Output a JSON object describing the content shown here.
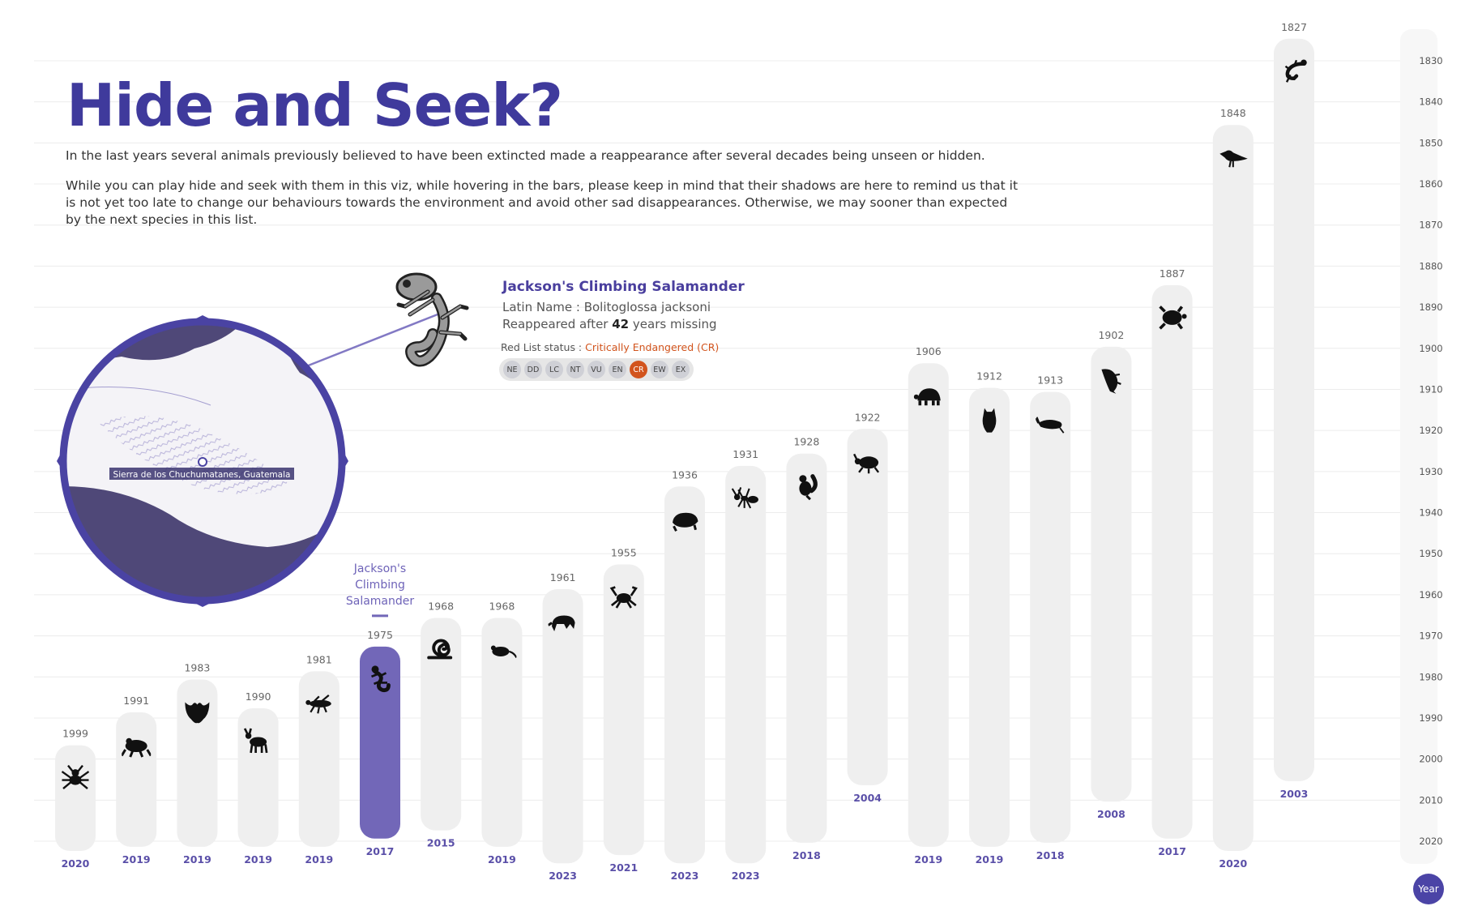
{
  "title": "Hide and Seek?",
  "intro_1": "In the last years several animals previously believed to have been extincted made a reappearance after several decades being unseen or hidden.",
  "intro_2": "While you can  play hide and seek with them in this viz, while hovering in the bars, please keep in mind that their shadows are here to remind us that it is not yet too late to change our behaviours towards the environment and avoid other sad disappearances. Otherwise, we may sooner than expected by the next species in this list.",
  "tooltip": {
    "name": "Jackson's Climbing Salamander",
    "latin_prefix": "Latin Name : ",
    "latin": "Bolitoglossa jacksoni",
    "reappeared_prefix": "Reappeared after ",
    "years_missing": "42",
    "reappeared_suffix": " years missing",
    "red_list_prefix": "Red List status : ",
    "red_list_status": "Critically Endangered (CR)",
    "red_list_categories": [
      "NE",
      "DD",
      "LC",
      "NT",
      "VU",
      "EN",
      "CR",
      "EW",
      "EX"
    ],
    "active_category": "CR",
    "map_label": "Sierra de los Chuchumatanes, Guatemala"
  },
  "year_button": "Year",
  "colors": {
    "title": "#3f3a9c",
    "bar": "#efefef",
    "highlight_bar": "#7267b8",
    "year_label": "#5a4fa8",
    "status_cr": "#d2541d",
    "map_ring": "#4a43a3"
  },
  "chart_data": {
    "type": "bar",
    "description_of_encoding": "Floating range bars: each bar spans from the year an animal was last seen (top label) to the year it reappeared (bottom label). The vertical year axis runs upward from 2020 to 1830.",
    "highlighted": "Jackson's Climbing Salamander",
    "highlight_label": [
      "Jackson's",
      "Climbing",
      "Salamander"
    ],
    "y_axis": {
      "ticks": [
        1830,
        1840,
        1850,
        1860,
        1870,
        1880,
        1890,
        1900,
        1910,
        1920,
        1930,
        1940,
        1950,
        1960,
        1970,
        1980,
        1990,
        2000,
        2010,
        2020
      ],
      "range": [
        1826,
        2026
      ],
      "reversed": true
    },
    "series": [
      {
        "last_seen": 1999,
        "rediscovered": 2020,
        "icon": "spider-icon"
      },
      {
        "last_seen": 1991,
        "rediscovered": 2019,
        "icon": "frog-icon"
      },
      {
        "last_seen": 1983,
        "rediscovered": 2019,
        "icon": "bat-icon"
      },
      {
        "last_seen": 1990,
        "rediscovered": 2019,
        "icon": "deer-icon"
      },
      {
        "last_seen": 1981,
        "rediscovered": 2019,
        "icon": "insect-icon"
      },
      {
        "last_seen": 1975,
        "rediscovered": 2017,
        "icon": "salamander-icon",
        "name": "Jackson's Climbing Salamander"
      },
      {
        "last_seen": 1968,
        "rediscovered": 2015,
        "icon": "snail-icon"
      },
      {
        "last_seen": 1968,
        "rediscovered": 2019,
        "icon": "mouse-icon"
      },
      {
        "last_seen": 1961,
        "rediscovered": 2023,
        "icon": "shrew-icon"
      },
      {
        "last_seen": 1955,
        "rediscovered": 2021,
        "icon": "crab-icon"
      },
      {
        "last_seen": 1936,
        "rediscovered": 2023,
        "icon": "mole-icon"
      },
      {
        "last_seen": 1931,
        "rediscovered": 2023,
        "icon": "ant-icon"
      },
      {
        "last_seen": 1928,
        "rediscovered": 2018,
        "icon": "squirrel-icon"
      },
      {
        "last_seen": 1922,
        "rediscovered": 2004,
        "icon": "beetle-icon"
      },
      {
        "last_seen": 1906,
        "rediscovered": 2019,
        "icon": "tortoise-icon"
      },
      {
        "last_seen": 1912,
        "rediscovered": 2019,
        "icon": "owl-icon"
      },
      {
        "last_seen": 1913,
        "rediscovered": 2018,
        "icon": "shrimp-icon"
      },
      {
        "last_seen": 1902,
        "rediscovered": 2008,
        "icon": "fish-icon"
      },
      {
        "last_seen": 1887,
        "rediscovered": 2017,
        "icon": "turtle-icon"
      },
      {
        "last_seen": 1848,
        "rediscovered": 2020,
        "icon": "bird-icon"
      },
      {
        "last_seen": 1827,
        "rediscovered": 2003,
        "icon": "lizard-icon"
      }
    ]
  }
}
